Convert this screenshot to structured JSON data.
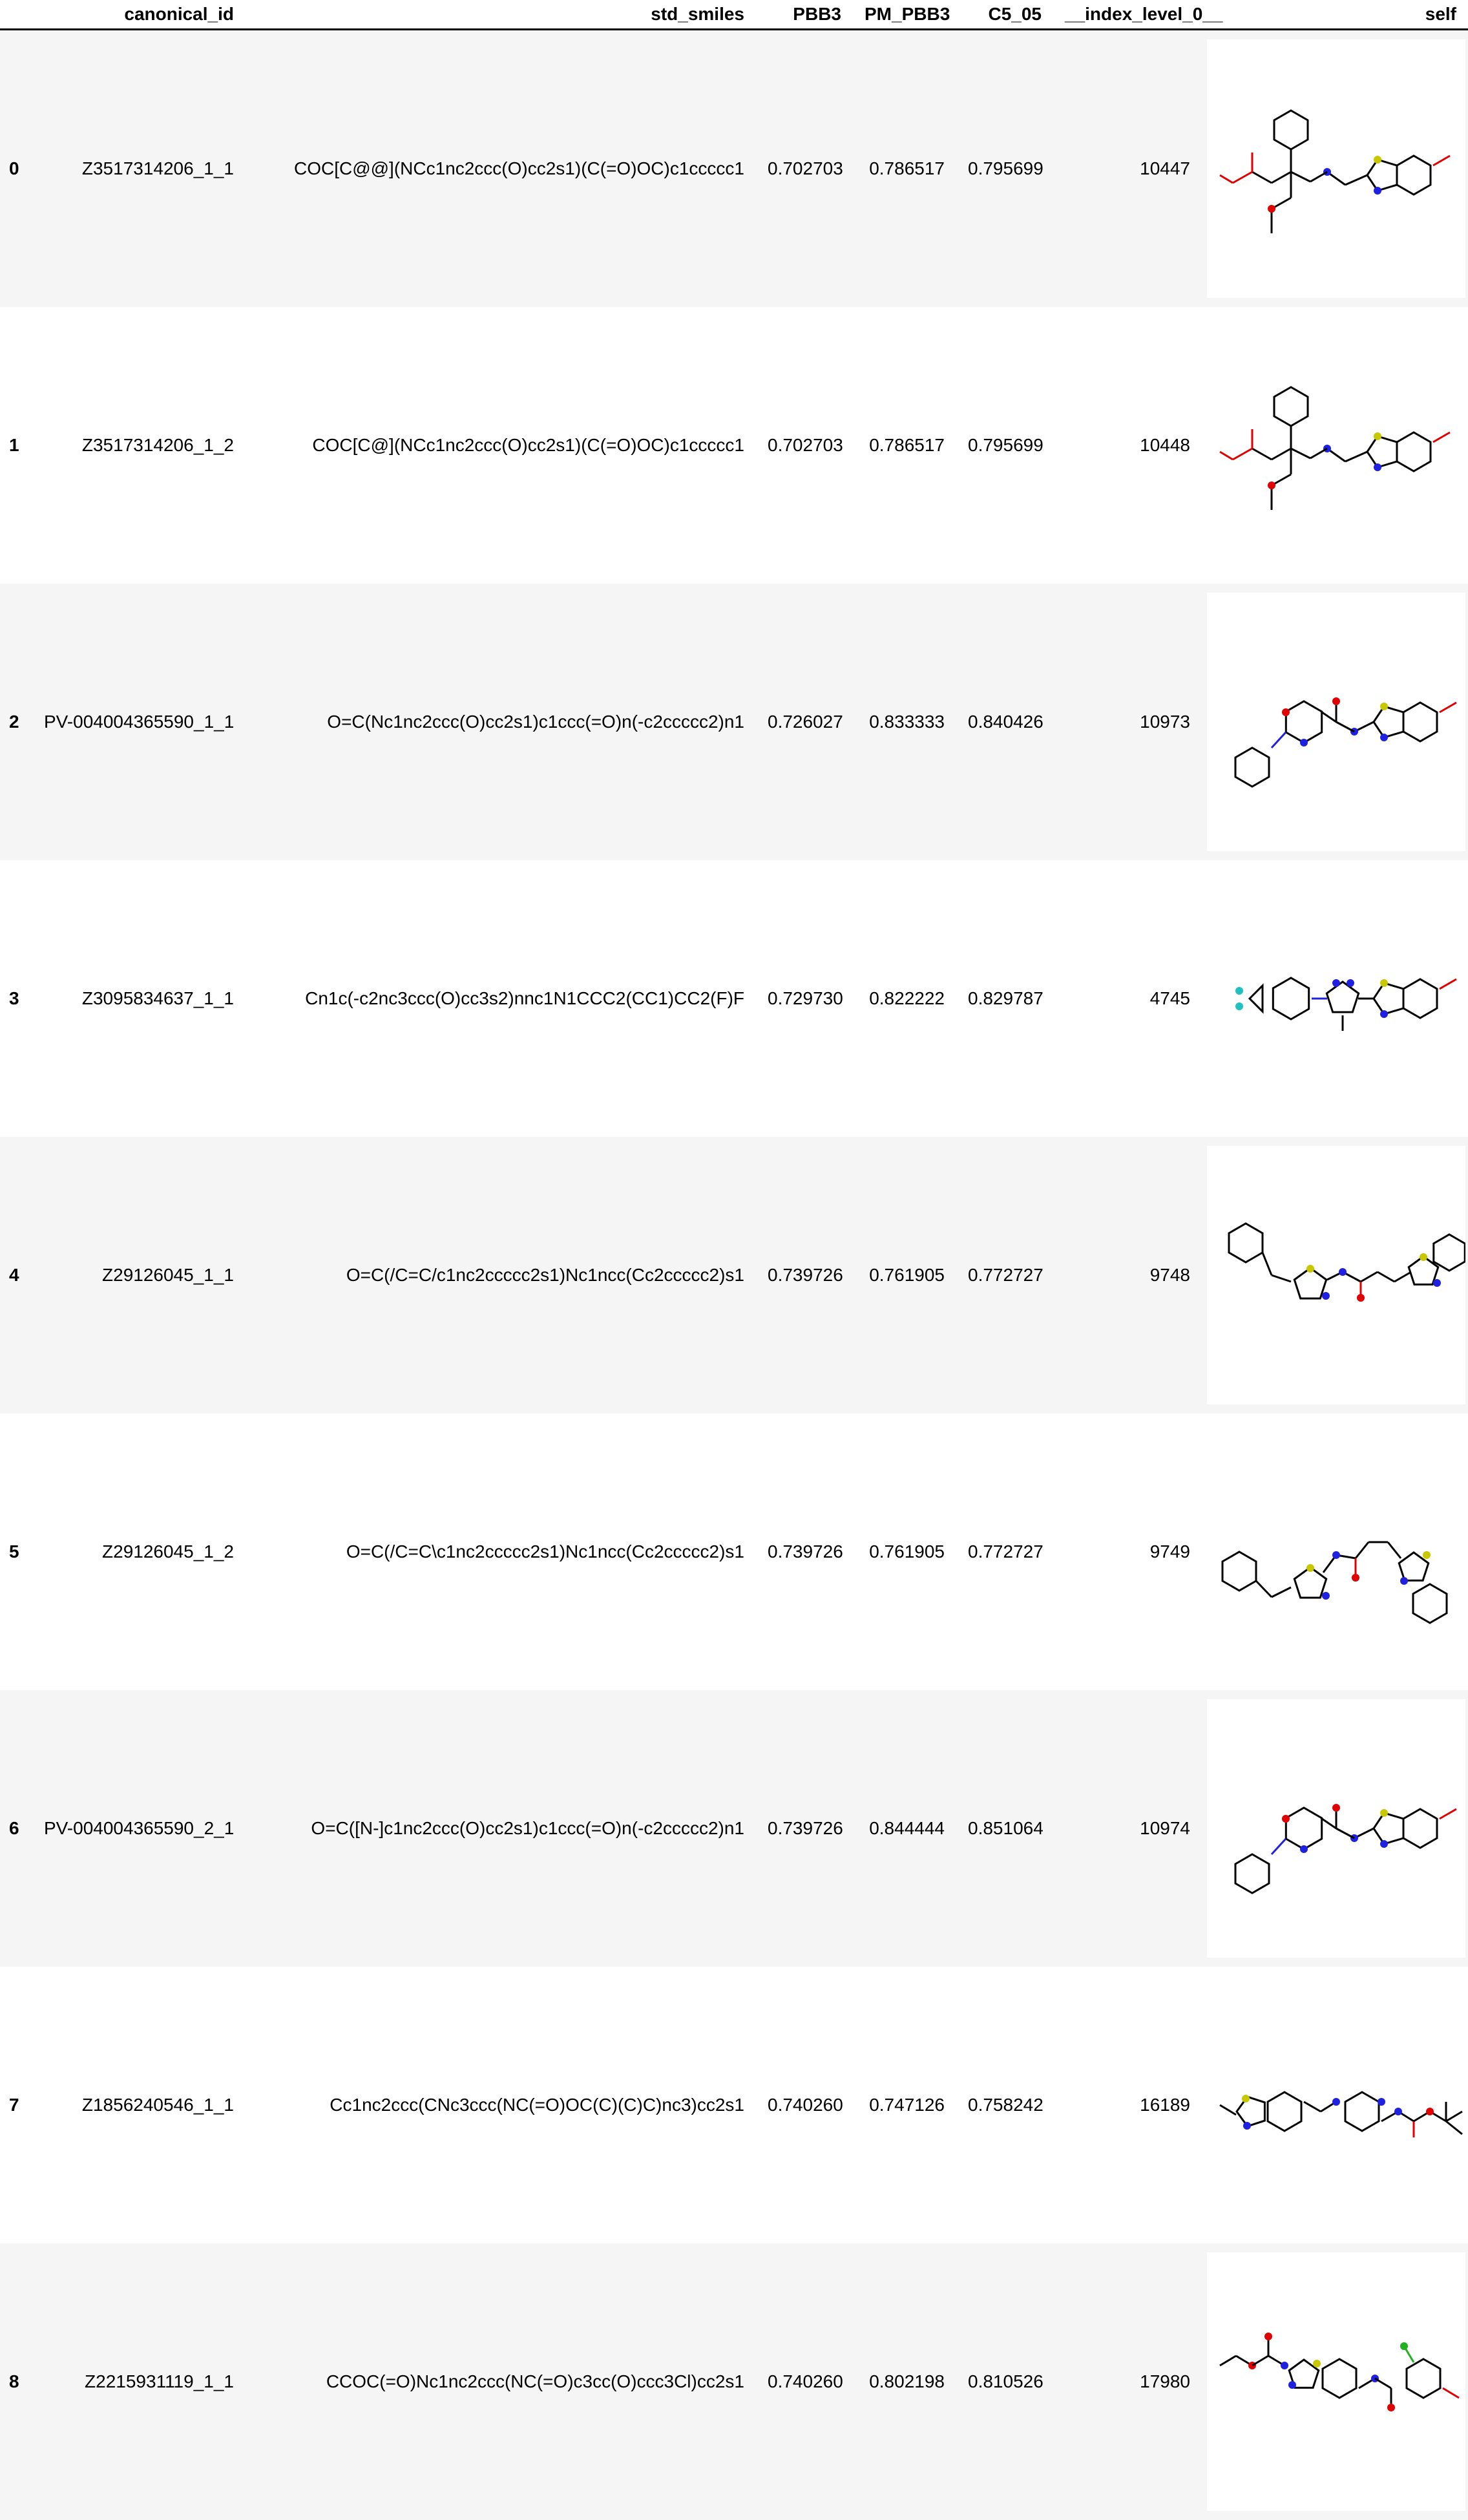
{
  "columns": [
    "",
    "canonical_id",
    "std_smiles",
    "PBB3",
    "PM_PBB3",
    "C5_05",
    "__index_level_0__",
    "self"
  ],
  "colors": {
    "stripe": "#f5f5f5",
    "bond": "#000000",
    "oxygen": "#e00000",
    "nitrogen": "#2020e0",
    "sulfur": "#c8c800",
    "fluorine": "#20c0c0",
    "chlorine": "#20b020"
  },
  "rows": [
    {
      "index": "0",
      "canonical_id": "Z3517314206_1_1",
      "std_smiles": "COC[C@@](NCc1nc2ccc(O)cc2s1)(C(=O)OC)c1ccccc1",
      "PBB3": "0.702703",
      "PM_PBB3": "0.786517",
      "C5_05": "0.795699",
      "level0": "10447",
      "structure": "molecule-structure-image"
    },
    {
      "index": "1",
      "canonical_id": "Z3517314206_1_2",
      "std_smiles": "COC[C@](NCc1nc2ccc(O)cc2s1)(C(=O)OC)c1ccccc1",
      "PBB3": "0.702703",
      "PM_PBB3": "0.786517",
      "C5_05": "0.795699",
      "level0": "10448",
      "structure": "molecule-structure-image"
    },
    {
      "index": "2",
      "canonical_id": "PV-004004365590_1_1",
      "std_smiles": "O=C(Nc1nc2ccc(O)cc2s1)c1ccc(=O)n(-c2ccccc2)n1",
      "PBB3": "0.726027",
      "PM_PBB3": "0.833333",
      "C5_05": "0.840426",
      "level0": "10973",
      "structure": "molecule-structure-image"
    },
    {
      "index": "3",
      "canonical_id": "Z3095834637_1_1",
      "std_smiles": "Cn1c(-c2nc3ccc(O)cc3s2)nnc1N1CCC2(CC1)CC2(F)F",
      "PBB3": "0.729730",
      "PM_PBB3": "0.822222",
      "C5_05": "0.829787",
      "level0": "4745",
      "structure": "molecule-structure-image"
    },
    {
      "index": "4",
      "canonical_id": "Z29126045_1_1",
      "std_smiles": "O=C(/C=C/c1nc2ccccc2s1)Nc1ncc(Cc2ccccc2)s1",
      "PBB3": "0.739726",
      "PM_PBB3": "0.761905",
      "C5_05": "0.772727",
      "level0": "9748",
      "structure": "molecule-structure-image"
    },
    {
      "index": "5",
      "canonical_id": "Z29126045_1_2",
      "std_smiles": "O=C(/C=C\\c1nc2ccccc2s1)Nc1ncc(Cc2ccccc2)s1",
      "PBB3": "0.739726",
      "PM_PBB3": "0.761905",
      "C5_05": "0.772727",
      "level0": "9749",
      "structure": "molecule-structure-image"
    },
    {
      "index": "6",
      "canonical_id": "PV-004004365590_2_1",
      "std_smiles": "O=C([N-]c1nc2ccc(O)cc2s1)c1ccc(=O)n(-c2ccccc2)n1",
      "PBB3": "0.739726",
      "PM_PBB3": "0.844444",
      "C5_05": "0.851064",
      "level0": "10974",
      "structure": "molecule-structure-image"
    },
    {
      "index": "7",
      "canonical_id": "Z1856240546_1_1",
      "std_smiles": "Cc1nc2ccc(CNc3ccc(NC(=O)OC(C)(C)C)nc3)cc2s1",
      "PBB3": "0.740260",
      "PM_PBB3": "0.747126",
      "C5_05": "0.758242",
      "level0": "16189",
      "structure": "molecule-structure-image"
    },
    {
      "index": "8",
      "canonical_id": "Z2215931119_1_1",
      "std_smiles": "CCOC(=O)Nc1nc2ccc(NC(=O)c3cc(O)ccc3Cl)cc2s1",
      "PBB3": "0.740260",
      "PM_PBB3": "0.802198",
      "C5_05": "0.810526",
      "level0": "17980",
      "structure": "molecule-structure-image"
    }
  ]
}
